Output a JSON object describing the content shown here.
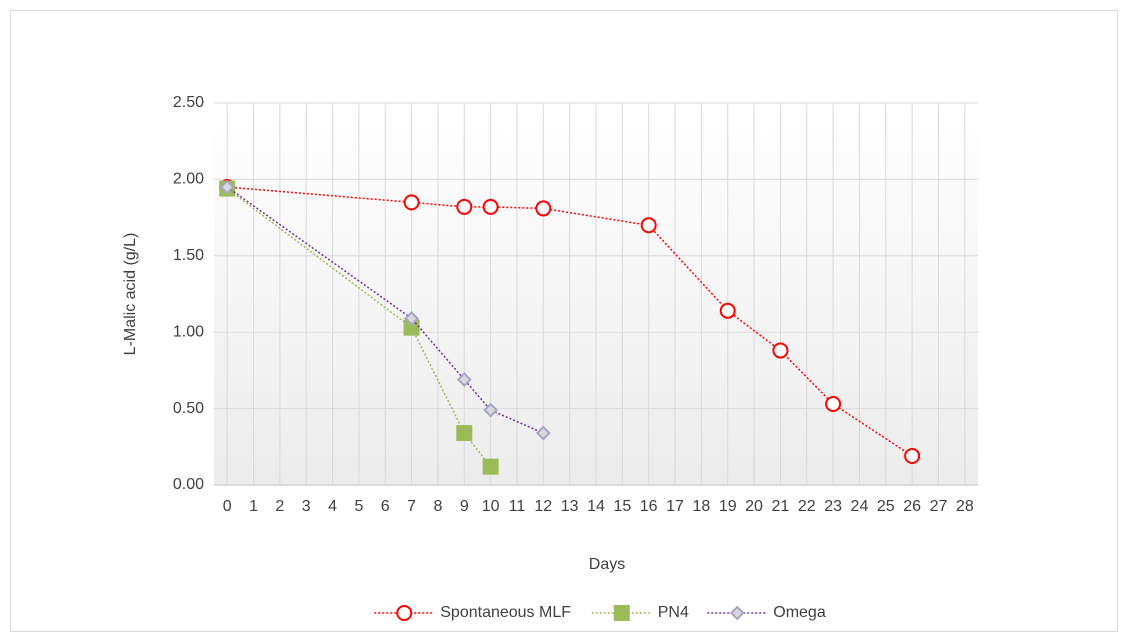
{
  "chart_data": {
    "type": "line",
    "x_label": "Days",
    "y_label": "L-Malic acid (g/L)",
    "xlim": [
      -0.5,
      28.5
    ],
    "xticks": [
      0,
      1,
      2,
      3,
      4,
      5,
      6,
      7,
      8,
      9,
      10,
      11,
      12,
      13,
      14,
      15,
      16,
      17,
      18,
      19,
      20,
      21,
      22,
      23,
      24,
      25,
      26,
      27,
      28
    ],
    "ylim": [
      0,
      2.5
    ],
    "yticks": [
      {
        "value": 0,
        "label": "0.00"
      },
      {
        "value": 0.5,
        "label": "0.50"
      },
      {
        "value": 1,
        "label": "1.00"
      },
      {
        "value": 1.5,
        "label": "1.50"
      },
      {
        "value": 2,
        "label": "2.00"
      },
      {
        "value": 2.5,
        "label": "2.50"
      }
    ],
    "grid": true,
    "legend": "bottom",
    "series": [
      {
        "name": "Spontaneous MLF",
        "color": "#ff0000",
        "marker": "circle",
        "marker_fill": "#ffffff",
        "x": [
          0,
          7,
          9,
          10,
          12,
          16,
          19,
          21,
          23,
          26
        ],
        "values": [
          1.95,
          1.85,
          1.82,
          1.82,
          1.81,
          1.7,
          1.14,
          0.88,
          0.53,
          0.19
        ]
      },
      {
        "name": "PN4",
        "color": "#9bbb59",
        "marker": "square",
        "marker_fill": "#9bbb59",
        "x": [
          0,
          7,
          9,
          10
        ],
        "values": [
          1.94,
          1.03,
          0.34,
          0.12
        ]
      },
      {
        "name": "Omega",
        "color": "#7030a0",
        "marker": "diamond",
        "marker_fill": "#d9d9d9",
        "x": [
          0,
          7,
          9,
          10,
          12
        ],
        "values": [
          1.95,
          1.09,
          0.69,
          0.49,
          0.34
        ]
      }
    ]
  }
}
